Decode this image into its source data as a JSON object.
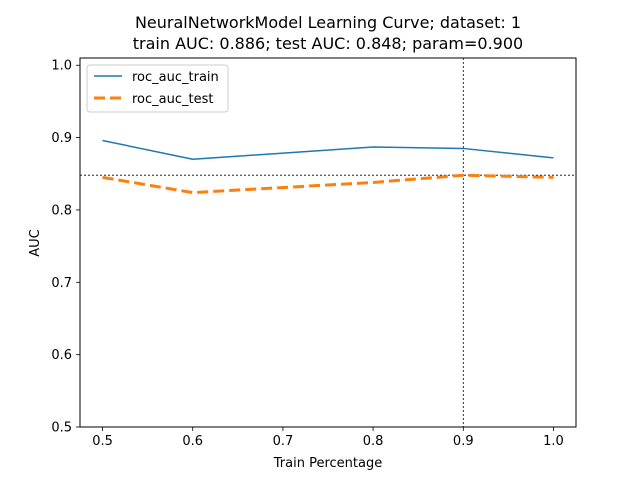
{
  "chart_data": {
    "type": "line",
    "title": "NeuralNetworkModel Learning Curve; dataset: 1\ntrain AUC: 0.886; test AUC: 0.848; param=0.900",
    "title_lines": [
      "NeuralNetworkModel Learning Curve; dataset: 1",
      "train AUC: 0.886; test AUC: 0.848; param=0.900"
    ],
    "xlabel": "Train Percentage",
    "ylabel": "AUC",
    "xlim": [
      0.475,
      1.025
    ],
    "ylim": [
      0.5,
      1.01
    ],
    "grid": false,
    "legend_position": "upper-left",
    "x_ticks": [
      {
        "value": 0.5,
        "label": "0.5"
      },
      {
        "value": 0.6,
        "label": "0.6"
      },
      {
        "value": 0.7,
        "label": "0.7"
      },
      {
        "value": 0.8,
        "label": "0.8"
      },
      {
        "value": 0.9,
        "label": "0.9"
      },
      {
        "value": 1.0,
        "label": "1.0"
      }
    ],
    "y_ticks": [
      {
        "value": 0.5,
        "label": "0.5"
      },
      {
        "value": 0.6,
        "label": "0.6"
      },
      {
        "value": 0.7,
        "label": "0.7"
      },
      {
        "value": 0.8,
        "label": "0.8"
      },
      {
        "value": 0.9,
        "label": "0.9"
      },
      {
        "value": 1.0,
        "label": "1.0"
      }
    ],
    "x": [
      0.5,
      0.6,
      0.8,
      0.9,
      1.0
    ],
    "series": [
      {
        "name": "roc_auc_train",
        "values": [
          0.896,
          0.87,
          0.887,
          0.885,
          0.872
        ],
        "color": "#1f77b4",
        "style": "solid"
      },
      {
        "name": "roc_auc_test",
        "values": [
          0.845,
          0.824,
          0.838,
          0.848,
          0.845
        ],
        "color": "#ff7f0e",
        "style": "dashed"
      }
    ],
    "reference_lines": {
      "vertical_x": 0.9,
      "horizontal_y": 0.848,
      "color": "#000000",
      "style": "dotted"
    }
  }
}
